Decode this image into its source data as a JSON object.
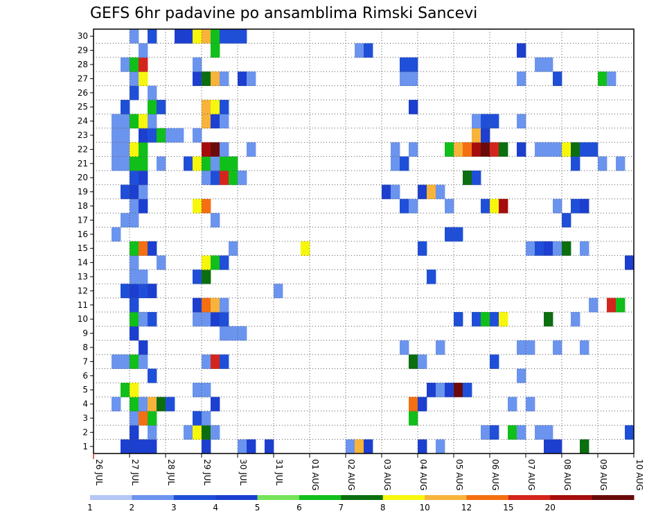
{
  "chart_data": {
    "type": "heatmap",
    "title": "GEFS 6hr padavine po ansamblima Rimski Sancevi",
    "x_tick_labels": [
      "26 JUL",
      "27 JUL",
      "28 JUL",
      "29 JUL",
      "30 JUL",
      "31 JUL",
      "01 AUG",
      "02 AUG",
      "03 AUG",
      "04 AUG",
      "05 AUG",
      "06 AUG",
      "07 AUG",
      "08 AUG",
      "09 AUG",
      "10 AUG"
    ],
    "y_tick_labels": [
      "1",
      "2",
      "3",
      "4",
      "5",
      "6",
      "7",
      "8",
      "9",
      "10",
      "11",
      "12",
      "13",
      "14",
      "15",
      "16",
      "17",
      "18",
      "19",
      "20",
      "21",
      "22",
      "23",
      "24",
      "25",
      "26",
      "27",
      "28",
      "29",
      "30"
    ],
    "xlim": [
      0,
      60
    ],
    "ylim": [
      0,
      30
    ],
    "grid": true,
    "legend_position": "bottom",
    "levels": [
      "1",
      "2",
      "3",
      "4",
      "5",
      "6",
      "7",
      "8",
      "10",
      "12",
      "15",
      "20"
    ],
    "colors": [
      "#b4c7f5",
      "#6b94ee",
      "#1f4fd8",
      "#1c3fd0",
      "#77e35a",
      "#11bf1a",
      "#0b6e0f",
      "#f7f70e",
      "#f8b33a",
      "#f46f12",
      "#d4251c",
      "#a70c0c",
      "#6a0a0a"
    ],
    "cells": [
      [
        3,
        0,
        3
      ],
      [
        4,
        0,
        3
      ],
      [
        5,
        0,
        3
      ],
      [
        6,
        0,
        3
      ],
      [
        12,
        0,
        3
      ],
      [
        16,
        0,
        1
      ],
      [
        17,
        0,
        3
      ],
      [
        19,
        0,
        3
      ],
      [
        28,
        0,
        1
      ],
      [
        29,
        0,
        8
      ],
      [
        30,
        0,
        3
      ],
      [
        36,
        0,
        3
      ],
      [
        38,
        0,
        1
      ],
      [
        50,
        0,
        3
      ],
      [
        51,
        0,
        3
      ],
      [
        54,
        0,
        6
      ],
      [
        4,
        1,
        3
      ],
      [
        6,
        1,
        1
      ],
      [
        10,
        1,
        1
      ],
      [
        11,
        1,
        7
      ],
      [
        12,
        1,
        6
      ],
      [
        13,
        1,
        1
      ],
      [
        43,
        1,
        1
      ],
      [
        44,
        1,
        2
      ],
      [
        46,
        1,
        5
      ],
      [
        47,
        1,
        1
      ],
      [
        49,
        1,
        1
      ],
      [
        50,
        1,
        1
      ],
      [
        59,
        1,
        2
      ],
      [
        4,
        2,
        1
      ],
      [
        5,
        2,
        9
      ],
      [
        6,
        2,
        5
      ],
      [
        11,
        2,
        2
      ],
      [
        12,
        2,
        1
      ],
      [
        35,
        2,
        5
      ],
      [
        2,
        3,
        1
      ],
      [
        4,
        3,
        5
      ],
      [
        5,
        3,
        1
      ],
      [
        6,
        3,
        8
      ],
      [
        7,
        3,
        6
      ],
      [
        8,
        3,
        2
      ],
      [
        13,
        3,
        3
      ],
      [
        35,
        3,
        9
      ],
      [
        36,
        3,
        3
      ],
      [
        46,
        3,
        1
      ],
      [
        48,
        3,
        1
      ],
      [
        3,
        4,
        5
      ],
      [
        4,
        4,
        7
      ],
      [
        11,
        4,
        1
      ],
      [
        12,
        4,
        1
      ],
      [
        37,
        4,
        3
      ],
      [
        38,
        4,
        1
      ],
      [
        39,
        4,
        3
      ],
      [
        40,
        4,
        12
      ],
      [
        41,
        4,
        2
      ],
      [
        6,
        5,
        2
      ],
      [
        47,
        5,
        1
      ],
      [
        2,
        6,
        1
      ],
      [
        3,
        6,
        1
      ],
      [
        4,
        6,
        5
      ],
      [
        5,
        6,
        1
      ],
      [
        12,
        6,
        1
      ],
      [
        13,
        6,
        10
      ],
      [
        14,
        6,
        2
      ],
      [
        35,
        6,
        6
      ],
      [
        36,
        6,
        1
      ],
      [
        44,
        6,
        2
      ],
      [
        5,
        7,
        3
      ],
      [
        34,
        7,
        1
      ],
      [
        38,
        7,
        1
      ],
      [
        47,
        7,
        1
      ],
      [
        48,
        7,
        1
      ],
      [
        51,
        7,
        1
      ],
      [
        54,
        7,
        1
      ],
      [
        4,
        8,
        3
      ],
      [
        14,
        8,
        1
      ],
      [
        15,
        8,
        1
      ],
      [
        16,
        8,
        1
      ],
      [
        4,
        9,
        5
      ],
      [
        5,
        9,
        1
      ],
      [
        6,
        9,
        2
      ],
      [
        11,
        9,
        1
      ],
      [
        12,
        9,
        1
      ],
      [
        13,
        9,
        3
      ],
      [
        14,
        9,
        2
      ],
      [
        40,
        9,
        2
      ],
      [
        42,
        9,
        2
      ],
      [
        43,
        9,
        5
      ],
      [
        44,
        9,
        2
      ],
      [
        45,
        9,
        7
      ],
      [
        50,
        9,
        6
      ],
      [
        53,
        9,
        1
      ],
      [
        4,
        10,
        2
      ],
      [
        11,
        10,
        3
      ],
      [
        12,
        10,
        9
      ],
      [
        13,
        10,
        8
      ],
      [
        14,
        10,
        1
      ],
      [
        55,
        10,
        1
      ],
      [
        57,
        10,
        10
      ],
      [
        58,
        10,
        5
      ],
      [
        3,
        11,
        2
      ],
      [
        4,
        11,
        3
      ],
      [
        5,
        11,
        2
      ],
      [
        6,
        11,
        3
      ],
      [
        20,
        11,
        1
      ],
      [
        4,
        12,
        1
      ],
      [
        5,
        12,
        1
      ],
      [
        11,
        12,
        2
      ],
      [
        12,
        12,
        6
      ],
      [
        37,
        12,
        2
      ],
      [
        4,
        13,
        1
      ],
      [
        7,
        13,
        1
      ],
      [
        12,
        13,
        7
      ],
      [
        13,
        13,
        5
      ],
      [
        14,
        13,
        2
      ],
      [
        59,
        13,
        3
      ],
      [
        4,
        14,
        5
      ],
      [
        5,
        14,
        9
      ],
      [
        6,
        14,
        3
      ],
      [
        15,
        14,
        1
      ],
      [
        23,
        14,
        7
      ],
      [
        36,
        14,
        2
      ],
      [
        48,
        14,
        1
      ],
      [
        49,
        14,
        2
      ],
      [
        50,
        14,
        3
      ],
      [
        51,
        14,
        1
      ],
      [
        52,
        14,
        6
      ],
      [
        54,
        14,
        1
      ],
      [
        2,
        15,
        1
      ],
      [
        39,
        15,
        2
      ],
      [
        40,
        15,
        2
      ],
      [
        3,
        16,
        1
      ],
      [
        4,
        16,
        1
      ],
      [
        13,
        16,
        1
      ],
      [
        52,
        16,
        2
      ],
      [
        4,
        17,
        1
      ],
      [
        5,
        17,
        3
      ],
      [
        11,
        17,
        7
      ],
      [
        12,
        17,
        9
      ],
      [
        34,
        17,
        2
      ],
      [
        35,
        17,
        1
      ],
      [
        39,
        17,
        1
      ],
      [
        43,
        17,
        2
      ],
      [
        44,
        17,
        7
      ],
      [
        45,
        17,
        11
      ],
      [
        51,
        17,
        1
      ],
      [
        53,
        17,
        2
      ],
      [
        54,
        17,
        3
      ],
      [
        3,
        18,
        2
      ],
      [
        4,
        18,
        3
      ],
      [
        5,
        18,
        1
      ],
      [
        32,
        18,
        3
      ],
      [
        33,
        18,
        1
      ],
      [
        36,
        18,
        3
      ],
      [
        37,
        18,
        8
      ],
      [
        38,
        18,
        1
      ],
      [
        4,
        19,
        2
      ],
      [
        5,
        19,
        3
      ],
      [
        12,
        19,
        1
      ],
      [
        13,
        19,
        2
      ],
      [
        14,
        19,
        10
      ],
      [
        15,
        19,
        5
      ],
      [
        16,
        19,
        1
      ],
      [
        41,
        19,
        6
      ],
      [
        42,
        19,
        2
      ],
      [
        2,
        20,
        1
      ],
      [
        3,
        20,
        1
      ],
      [
        4,
        20,
        5
      ],
      [
        5,
        20,
        5
      ],
      [
        7,
        20,
        1
      ],
      [
        10,
        20,
        2
      ],
      [
        11,
        20,
        7
      ],
      [
        12,
        20,
        5
      ],
      [
        13,
        20,
        1
      ],
      [
        14,
        20,
        5
      ],
      [
        15,
        20,
        5
      ],
      [
        33,
        20,
        1
      ],
      [
        34,
        20,
        2
      ],
      [
        53,
        20,
        2
      ],
      [
        56,
        20,
        1
      ],
      [
        58,
        20,
        1
      ],
      [
        2,
        21,
        1
      ],
      [
        3,
        21,
        1
      ],
      [
        4,
        21,
        7
      ],
      [
        5,
        21,
        5
      ],
      [
        12,
        21,
        11
      ],
      [
        13,
        21,
        12
      ],
      [
        14,
        21,
        1
      ],
      [
        17,
        21,
        1
      ],
      [
        33,
        21,
        1
      ],
      [
        35,
        21,
        1
      ],
      [
        39,
        21,
        5
      ],
      [
        40,
        21,
        8
      ],
      [
        41,
        21,
        9
      ],
      [
        42,
        21,
        11
      ],
      [
        43,
        21,
        12
      ],
      [
        44,
        21,
        10
      ],
      [
        45,
        21,
        6
      ],
      [
        47,
        21,
        3
      ],
      [
        49,
        21,
        1
      ],
      [
        50,
        21,
        1
      ],
      [
        51,
        21,
        1
      ],
      [
        52,
        21,
        7
      ],
      [
        53,
        21,
        6
      ],
      [
        54,
        21,
        2
      ],
      [
        55,
        21,
        2
      ],
      [
        2,
        22,
        1
      ],
      [
        3,
        22,
        1
      ],
      [
        5,
        22,
        3
      ],
      [
        6,
        22,
        2
      ],
      [
        7,
        22,
        5
      ],
      [
        8,
        22,
        1
      ],
      [
        9,
        22,
        1
      ],
      [
        11,
        22,
        1
      ],
      [
        42,
        22,
        8
      ],
      [
        43,
        22,
        3
      ],
      [
        2,
        23,
        1
      ],
      [
        3,
        23,
        1
      ],
      [
        4,
        23,
        5
      ],
      [
        5,
        23,
        7
      ],
      [
        6,
        23,
        1
      ],
      [
        12,
        23,
        8
      ],
      [
        13,
        23,
        3
      ],
      [
        14,
        23,
        1
      ],
      [
        42,
        23,
        1
      ],
      [
        43,
        23,
        2
      ],
      [
        44,
        23,
        2
      ],
      [
        47,
        23,
        1
      ],
      [
        3,
        24,
        2
      ],
      [
        6,
        24,
        5
      ],
      [
        7,
        24,
        2
      ],
      [
        12,
        24,
        8
      ],
      [
        13,
        24,
        7
      ],
      [
        14,
        24,
        2
      ],
      [
        35,
        24,
        3
      ],
      [
        4,
        25,
        2
      ],
      [
        6,
        25,
        1
      ],
      [
        4,
        26,
        1
      ],
      [
        5,
        26,
        7
      ],
      [
        11,
        26,
        3
      ],
      [
        12,
        26,
        6
      ],
      [
        13,
        26,
        8
      ],
      [
        14,
        26,
        1
      ],
      [
        16,
        26,
        3
      ],
      [
        17,
        26,
        1
      ],
      [
        34,
        26,
        1
      ],
      [
        35,
        26,
        1
      ],
      [
        47,
        26,
        1
      ],
      [
        51,
        26,
        2
      ],
      [
        56,
        26,
        5
      ],
      [
        57,
        26,
        1
      ],
      [
        3,
        27,
        1
      ],
      [
        4,
        27,
        5
      ],
      [
        5,
        27,
        10
      ],
      [
        11,
        27,
        1
      ],
      [
        34,
        27,
        2
      ],
      [
        35,
        27,
        2
      ],
      [
        49,
        27,
        1
      ],
      [
        50,
        27,
        1
      ],
      [
        5,
        28,
        1
      ],
      [
        13,
        28,
        5
      ],
      [
        29,
        28,
        1
      ],
      [
        30,
        28,
        2
      ],
      [
        47,
        28,
        3
      ],
      [
        4,
        29,
        1
      ],
      [
        6,
        29,
        2
      ],
      [
        9,
        29,
        3
      ],
      [
        10,
        29,
        3
      ],
      [
        11,
        29,
        7
      ],
      [
        12,
        29,
        8
      ],
      [
        13,
        29,
        5
      ],
      [
        14,
        29,
        2
      ],
      [
        15,
        29,
        2
      ],
      [
        16,
        29,
        2
      ]
    ]
  }
}
